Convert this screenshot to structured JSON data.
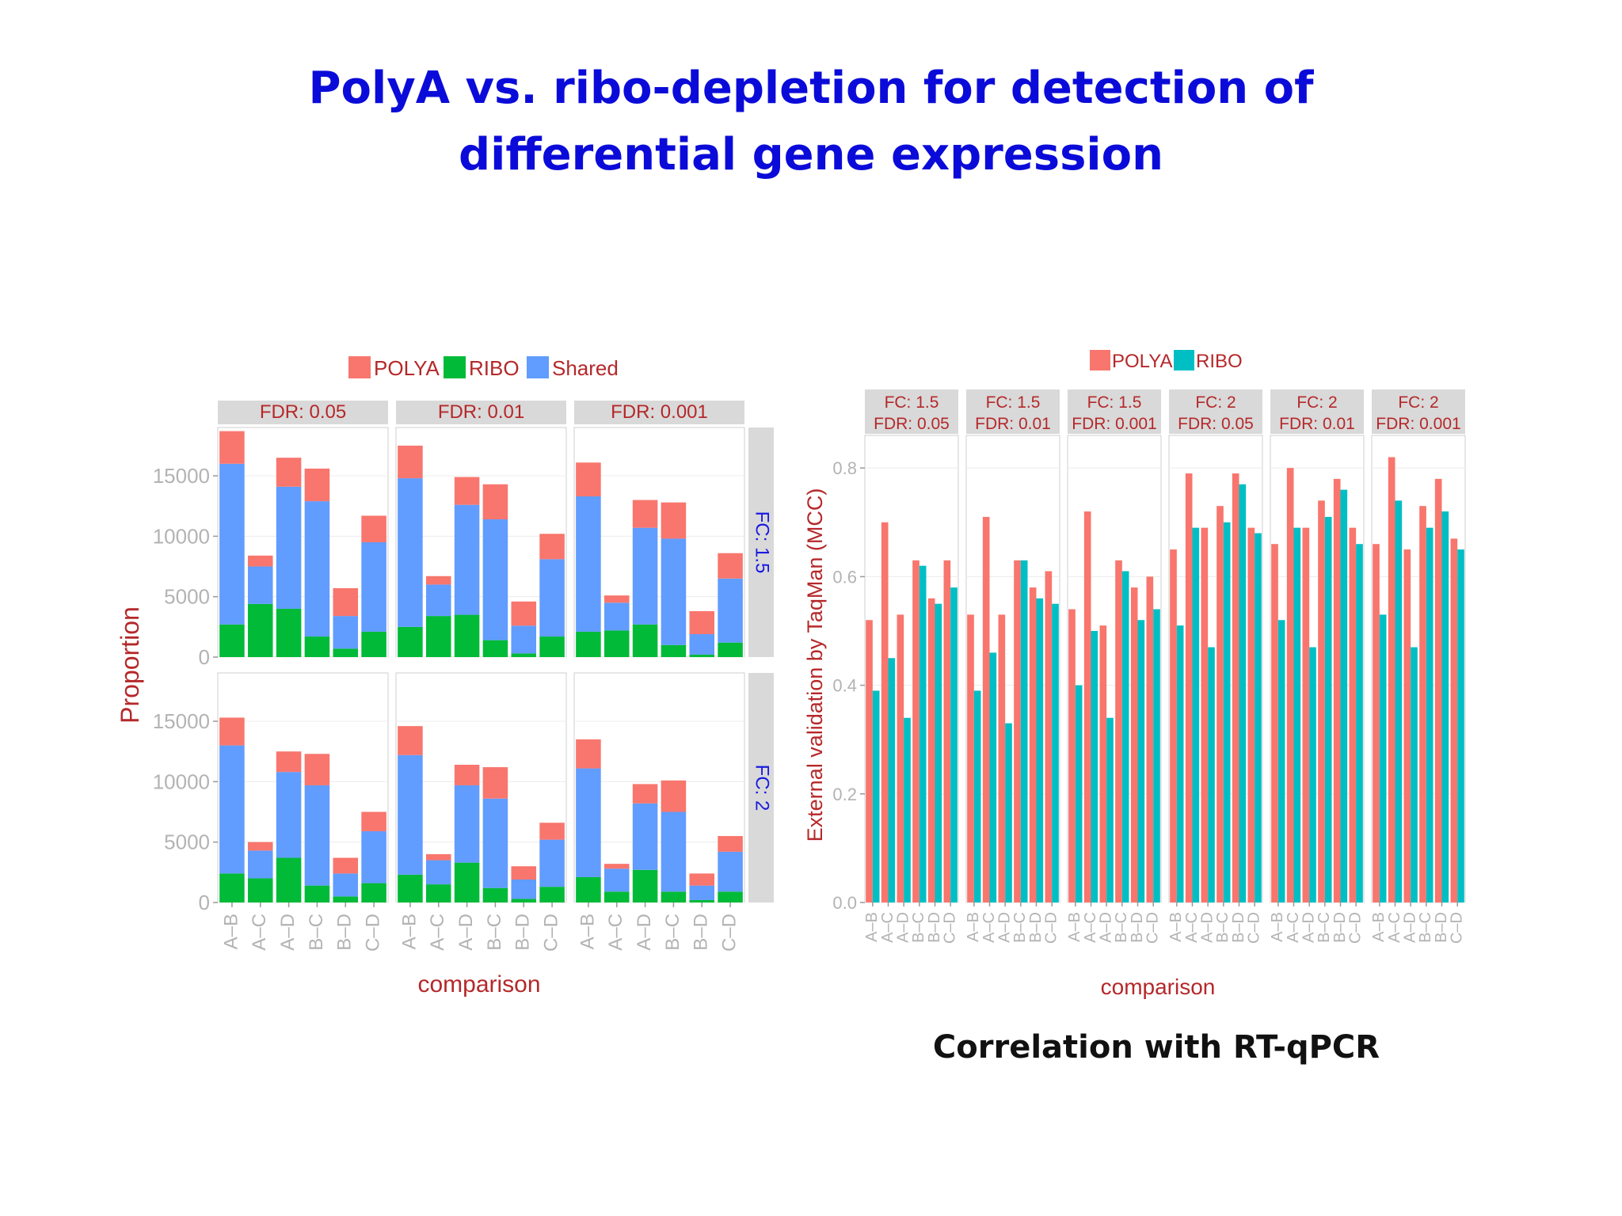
{
  "slide": {
    "title_line1": "PolyA vs. ribo-depletion for detection of",
    "title_line2": "differential gene expression",
    "caption": "Correlation with RT-qPCR"
  },
  "colors": {
    "polya": "#f8766d",
    "ribo": "#00ba38",
    "shared": "#619cff",
    "ribo_right": "#00bfc4",
    "strip_bg": "#d9d9d9",
    "strip_text": "#b5282a",
    "axis_title": "#b5282a",
    "row_strip_text": "#1a1ae0",
    "panel_bg": "#ffffff",
    "grid": "#ececec",
    "tick_text": "#b3b3b3"
  },
  "chart_data": [
    {
      "type": "bar",
      "stacked": true,
      "ylabel": "Proportion",
      "xlabel": "comparison",
      "ylim": [
        0,
        19000
      ],
      "yticks": [
        "0",
        "5000",
        "10000",
        "15000"
      ],
      "ytick_values": [
        0,
        5000,
        10000,
        15000
      ],
      "legend": {
        "position": "top",
        "entries": [
          "POLYA",
          "RIBO",
          "Shared"
        ]
      },
      "columns": [
        "FDR: 0.05",
        "FDR: 0.01",
        "FDR: 0.001"
      ],
      "rows": [
        "FC: 1.5",
        "FC: 2"
      ],
      "categories": [
        "A–B",
        "A–C",
        "A–D",
        "B–C",
        "B–D",
        "C–D"
      ],
      "panels": [
        {
          "row": 0,
          "col": 0,
          "ribo": [
            2700,
            4400,
            4000,
            1700,
            700,
            2100
          ],
          "shared": [
            13300,
            3100,
            10100,
            11200,
            2700,
            7400
          ],
          "polya": [
            2700,
            900,
            2400,
            2700,
            2300,
            2200
          ]
        },
        {
          "row": 0,
          "col": 1,
          "ribo": [
            2500,
            3400,
            3500,
            1400,
            300,
            1700
          ],
          "shared": [
            12300,
            2600,
            9100,
            10000,
            2300,
            6400
          ],
          "polya": [
            2700,
            700,
            2300,
            2900,
            2000,
            2100
          ]
        },
        {
          "row": 0,
          "col": 2,
          "ribo": [
            2100,
            2200,
            2700,
            1000,
            200,
            1200
          ],
          "shared": [
            11200,
            2300,
            8000,
            8800,
            1700,
            5300
          ],
          "polya": [
            2800,
            600,
            2300,
            3000,
            1900,
            2100
          ]
        },
        {
          "row": 1,
          "col": 0,
          "ribo": [
            2400,
            2000,
            3700,
            1400,
            500,
            1600
          ],
          "shared": [
            10600,
            2300,
            7100,
            8300,
            1900,
            4300
          ],
          "polya": [
            2300,
            700,
            1700,
            2600,
            1300,
            1600
          ]
        },
        {
          "row": 1,
          "col": 1,
          "ribo": [
            2300,
            1500,
            3300,
            1200,
            300,
            1300
          ],
          "shared": [
            9900,
            2000,
            6400,
            7400,
            1600,
            3900
          ],
          "polya": [
            2400,
            500,
            1700,
            2600,
            1100,
            1400
          ]
        },
        {
          "row": 1,
          "col": 2,
          "ribo": [
            2100,
            900,
            2700,
            900,
            200,
            900
          ],
          "shared": [
            9000,
            1900,
            5500,
            6600,
            1200,
            3300
          ],
          "polya": [
            2400,
            400,
            1600,
            2600,
            1000,
            1300
          ]
        }
      ]
    },
    {
      "type": "bar",
      "ylabel": "External validation by TaqMan (MCC)",
      "xlabel": "comparison",
      "ylim": [
        0,
        0.86
      ],
      "yticks": [
        "0.0",
        "0.2",
        "0.4",
        "0.6",
        "0.8"
      ],
      "ytick_values": [
        0,
        0.2,
        0.4,
        0.6,
        0.8
      ],
      "legend": {
        "position": "top",
        "entries": [
          "POLYA",
          "RIBO"
        ]
      },
      "panels_labels": [
        [
          "FC: 1.5",
          "FDR: 0.05"
        ],
        [
          "FC: 1.5",
          "FDR: 0.01"
        ],
        [
          "FC: 1.5",
          "FDR: 0.001"
        ],
        [
          "FC: 2",
          "FDR: 0.05"
        ],
        [
          "FC: 2",
          "FDR: 0.01"
        ],
        [
          "FC: 2",
          "FDR: 0.001"
        ]
      ],
      "categories": [
        "A–B",
        "A–C",
        "A–D",
        "B–C",
        "B–D",
        "C–D"
      ],
      "panels": [
        {
          "polya": [
            0.52,
            0.7,
            0.53,
            0.63,
            0.56,
            0.63
          ],
          "ribo": [
            0.39,
            0.45,
            0.34,
            0.62,
            0.55,
            0.58
          ]
        },
        {
          "polya": [
            0.53,
            0.71,
            0.53,
            0.63,
            0.58,
            0.61
          ],
          "ribo": [
            0.39,
            0.46,
            0.33,
            0.63,
            0.56,
            0.55
          ]
        },
        {
          "polya": [
            0.54,
            0.72,
            0.51,
            0.63,
            0.58,
            0.6
          ],
          "ribo": [
            0.4,
            0.5,
            0.34,
            0.61,
            0.52,
            0.54
          ]
        },
        {
          "polya": [
            0.65,
            0.79,
            0.69,
            0.73,
            0.79,
            0.69
          ],
          "ribo": [
            0.51,
            0.69,
            0.47,
            0.7,
            0.77,
            0.68
          ]
        },
        {
          "polya": [
            0.66,
            0.8,
            0.69,
            0.74,
            0.78,
            0.69
          ],
          "ribo": [
            0.52,
            0.69,
            0.47,
            0.71,
            0.76,
            0.66
          ]
        },
        {
          "polya": [
            0.66,
            0.82,
            0.65,
            0.73,
            0.78,
            0.67
          ],
          "ribo": [
            0.53,
            0.74,
            0.47,
            0.69,
            0.72,
            0.65
          ]
        }
      ]
    }
  ]
}
